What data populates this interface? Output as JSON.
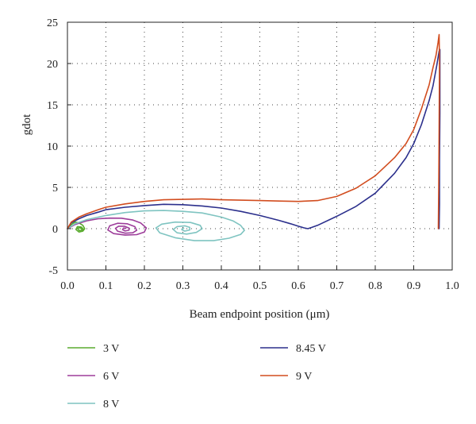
{
  "chart_data": {
    "type": "line",
    "title": "",
    "xlabel": "Beam endpoint position (μm)",
    "ylabel": "gdot",
    "xlim": [
      0.0,
      1.0
    ],
    "ylim": [
      -5,
      25
    ],
    "xticks": [
      0.0,
      0.1,
      0.2,
      0.3,
      0.4,
      0.5,
      0.6,
      0.7,
      0.8,
      0.9,
      1.0
    ],
    "xtick_labels": [
      "0.0",
      "0.1",
      "0.2",
      "0.3",
      "0.4",
      "0.5",
      "0.6",
      "0.7",
      "0.8",
      "0.9",
      "1.0"
    ],
    "yticks": [
      -5,
      0,
      5,
      10,
      15,
      20,
      25
    ],
    "ytick_labels": [
      "-5",
      "0",
      "5",
      "10",
      "15",
      "20",
      "25"
    ],
    "grid": true,
    "legend_position": "bottom",
    "series": [
      {
        "name": "3 V",
        "color": "#5aab2e",
        "x": [
          0.0,
          0.01,
          0.02,
          0.03,
          0.04,
          0.045,
          0.04,
          0.03,
          0.022,
          0.026,
          0.036,
          0.041,
          0.038,
          0.03,
          0.027,
          0.031,
          0.036,
          0.037
        ],
        "y": [
          0,
          0.5,
          0.8,
          0.7,
          0.4,
          0.0,
          -0.3,
          -0.4,
          -0.1,
          0.25,
          0.2,
          -0.05,
          -0.25,
          -0.2,
          0.05,
          0.12,
          0.02,
          -0.08
        ]
      },
      {
        "name": "6 V",
        "color": "#9d3d9a",
        "x": [
          0.0,
          0.02,
          0.05,
          0.08,
          0.11,
          0.14,
          0.17,
          0.19,
          0.205,
          0.2,
          0.18,
          0.15,
          0.12,
          0.105,
          0.11,
          0.13,
          0.155,
          0.175,
          0.18,
          0.17,
          0.15,
          0.13,
          0.125,
          0.133,
          0.148,
          0.16,
          0.16,
          0.15,
          0.143,
          0.146,
          0.152
        ],
        "y": [
          0,
          0.5,
          0.95,
          1.2,
          1.28,
          1.27,
          1.05,
          0.7,
          0.1,
          -0.4,
          -0.72,
          -0.78,
          -0.6,
          -0.15,
          0.35,
          0.65,
          0.6,
          0.25,
          -0.2,
          -0.5,
          -0.55,
          -0.3,
          0.05,
          0.3,
          0.3,
          0.08,
          -0.18,
          -0.28,
          -0.12,
          0.08,
          0.05
        ]
      },
      {
        "name": "8 V",
        "color": "#7fc4c1",
        "x": [
          0.0,
          0.02,
          0.05,
          0.1,
          0.15,
          0.2,
          0.25,
          0.3,
          0.35,
          0.4,
          0.43,
          0.45,
          0.46,
          0.45,
          0.42,
          0.38,
          0.33,
          0.28,
          0.24,
          0.23,
          0.245,
          0.28,
          0.32,
          0.345,
          0.35,
          0.335,
          0.31,
          0.285,
          0.275,
          0.285,
          0.305,
          0.318,
          0.318,
          0.305,
          0.297,
          0.302
        ],
        "y": [
          0,
          0.6,
          1.1,
          1.6,
          1.95,
          2.15,
          2.2,
          2.1,
          1.9,
          1.4,
          0.95,
          0.4,
          -0.2,
          -0.7,
          -1.15,
          -1.45,
          -1.45,
          -1.1,
          -0.5,
          0.1,
          0.55,
          0.8,
          0.75,
          0.4,
          0.0,
          -0.45,
          -0.65,
          -0.5,
          -0.1,
          0.25,
          0.35,
          0.15,
          -0.15,
          -0.3,
          -0.12,
          0.06
        ]
      },
      {
        "name": "8.45 V",
        "color": "#2b2f8c",
        "x": [
          0.0,
          0.01,
          0.03,
          0.05,
          0.08,
          0.1,
          0.15,
          0.2,
          0.25,
          0.3,
          0.35,
          0.4,
          0.45,
          0.5,
          0.55,
          0.58,
          0.6,
          0.615,
          0.625,
          0.635,
          0.65,
          0.7,
          0.75,
          0.8,
          0.85,
          0.88,
          0.9,
          0.92,
          0.94,
          0.95,
          0.96,
          0.966,
          0.968,
          0.968,
          0.967,
          0.967,
          0.966
        ],
        "y": [
          0,
          0.7,
          1.2,
          1.6,
          2.0,
          2.3,
          2.6,
          2.8,
          2.95,
          2.9,
          2.75,
          2.5,
          2.1,
          1.6,
          1.0,
          0.6,
          0.3,
          0.1,
          0.0,
          0.15,
          0.4,
          1.5,
          2.7,
          4.3,
          6.7,
          8.6,
          10.3,
          12.6,
          15.5,
          17.3,
          19.8,
          21.5,
          21.7,
          14.0,
          8.0,
          3.0,
          0.0
        ]
      },
      {
        "name": "9 V",
        "color": "#d24d1f",
        "x": [
          0.0,
          0.01,
          0.03,
          0.05,
          0.08,
          0.1,
          0.15,
          0.2,
          0.25,
          0.3,
          0.35,
          0.4,
          0.45,
          0.5,
          0.55,
          0.6,
          0.65,
          0.7,
          0.75,
          0.8,
          0.85,
          0.88,
          0.9,
          0.92,
          0.94,
          0.95,
          0.958,
          0.963,
          0.966,
          0.967,
          0.966,
          0.965,
          0.964
        ],
        "y": [
          0,
          0.8,
          1.4,
          1.8,
          2.3,
          2.6,
          3.0,
          3.3,
          3.5,
          3.55,
          3.6,
          3.5,
          3.45,
          3.4,
          3.35,
          3.3,
          3.4,
          3.9,
          4.9,
          6.4,
          8.6,
          10.3,
          12.0,
          14.5,
          17.4,
          19.5,
          21.0,
          22.5,
          23.5,
          20.0,
          12.0,
          5.0,
          0.0
        ]
      }
    ]
  }
}
